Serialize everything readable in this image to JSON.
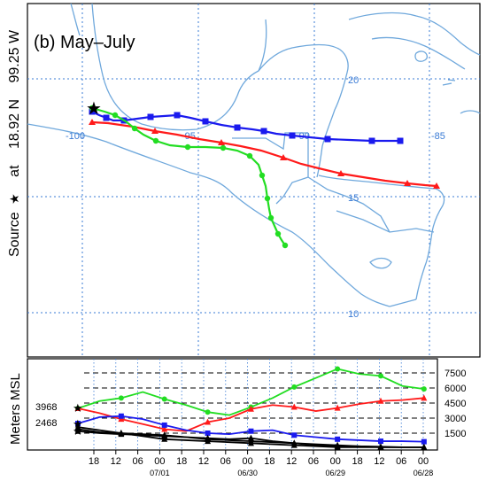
{
  "title": "(b) May–July",
  "source_label": {
    "prefix": "Source",
    "star": "★",
    "at": "at",
    "lat": "18.92 N",
    "lon": "99.25 W"
  },
  "map": {
    "lat_labels": [
      "20",
      "15",
      "10"
    ],
    "lon_labels": [
      "-100",
      "-95",
      "-90",
      "-85"
    ]
  },
  "height_panel": {
    "ylabel": "Meters MSL",
    "right_ticks": [
      "7500",
      "6000",
      "4500",
      "3000",
      "1500"
    ],
    "left_values": [
      "3968",
      "2468"
    ],
    "hour_ticks": [
      "18",
      "12",
      "06",
      "00",
      "18",
      "12",
      "06",
      "00",
      "18",
      "12",
      "06",
      "00",
      "18",
      "12",
      "06",
      "00"
    ],
    "date_ticks": [
      "07/01",
      "06/30",
      "06/29",
      "06/28"
    ]
  },
  "colors": {
    "red": "#ff1a1a",
    "green": "#22dd22",
    "blue": "#1a1aee",
    "black": "#000000",
    "map_lines": "#6fa8dc",
    "grid": "#3a7bd5"
  }
}
